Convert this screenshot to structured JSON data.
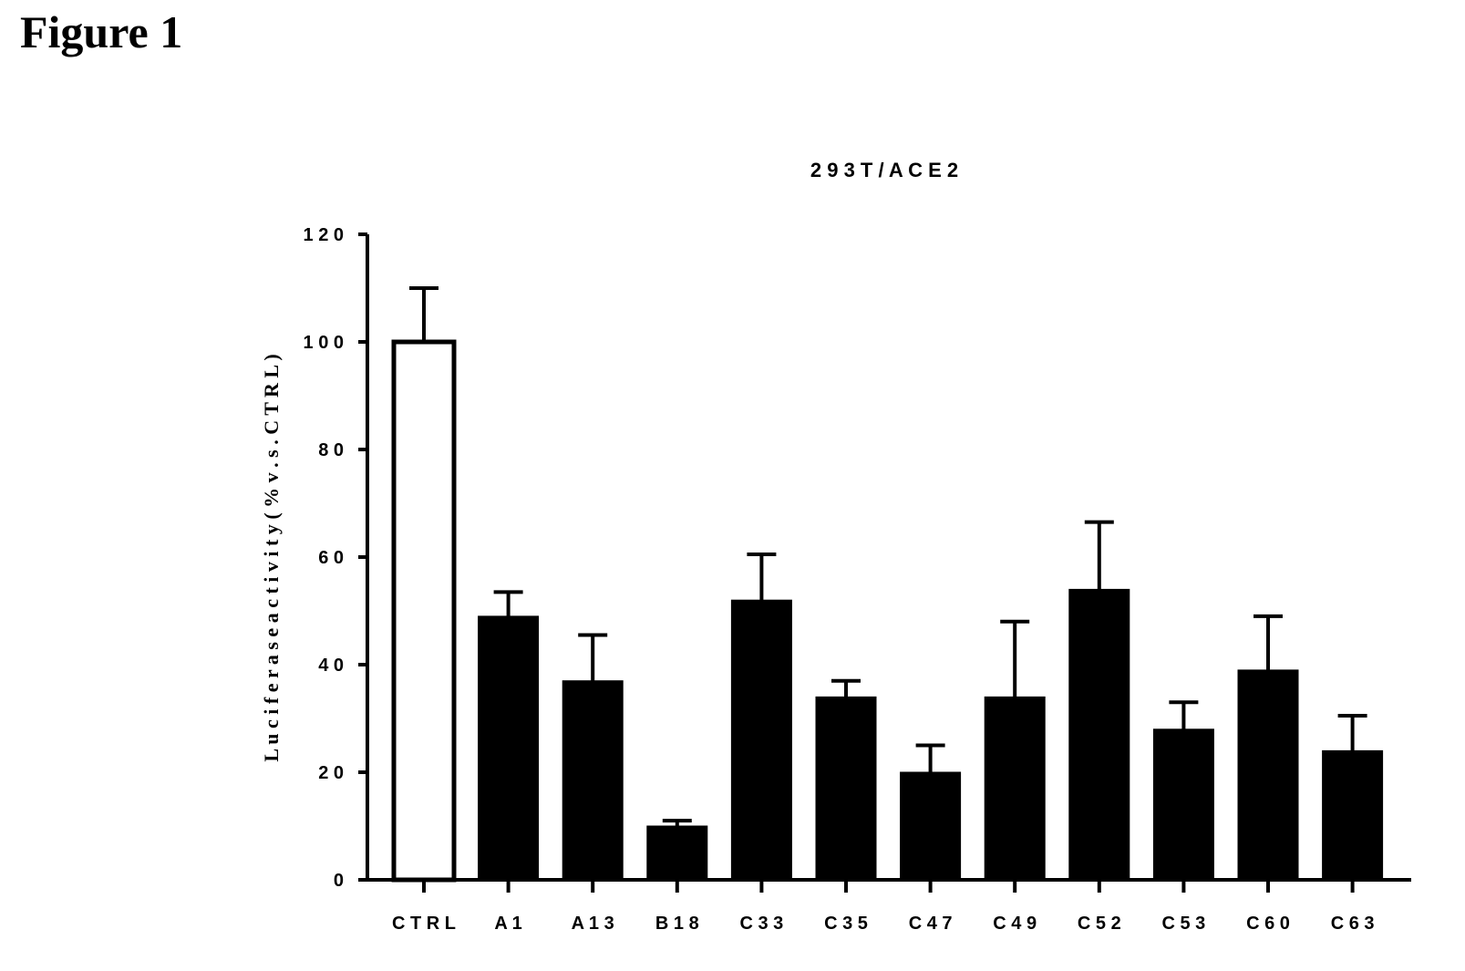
{
  "figure_label": "Figure 1",
  "chart_data": {
    "type": "bar",
    "title": "2 9 3 T / A C E 2",
    "ylabel": "L u c i f e r a s e   a c t i v i t y  ( %   v . s .  C T R L )",
    "xlabel": "",
    "categories": [
      "C T R L",
      "A 1",
      "A 1 3",
      "B 1 8",
      "C 3 3",
      "C 3 5",
      "C 4 7",
      "C 4 9",
      "C 5 2",
      "C 5 3",
      "C 6 0",
      "C 6 3"
    ],
    "values": [
      100,
      49,
      37,
      10,
      52,
      34,
      20,
      34,
      54,
      28,
      39,
      24
    ],
    "error_upper": [
      110,
      53.5,
      45.5,
      11,
      60.5,
      37,
      25,
      48,
      66.5,
      33,
      49,
      30.5
    ],
    "ylim": [
      0,
      120
    ],
    "yticks": [
      0,
      20,
      40,
      60,
      80,
      100,
      120
    ],
    "ytick_labels": [
      "0",
      "2 0",
      "4 0",
      "6 0",
      "8 0",
      "1 0 0",
      "1 2 0"
    ],
    "bar_colors": [
      "#ffffff",
      "#000000",
      "#000000",
      "#000000",
      "#000000",
      "#000000",
      "#000000",
      "#000000",
      "#000000",
      "#000000",
      "#000000",
      "#000000"
    ],
    "grid": false,
    "legend": "none"
  }
}
